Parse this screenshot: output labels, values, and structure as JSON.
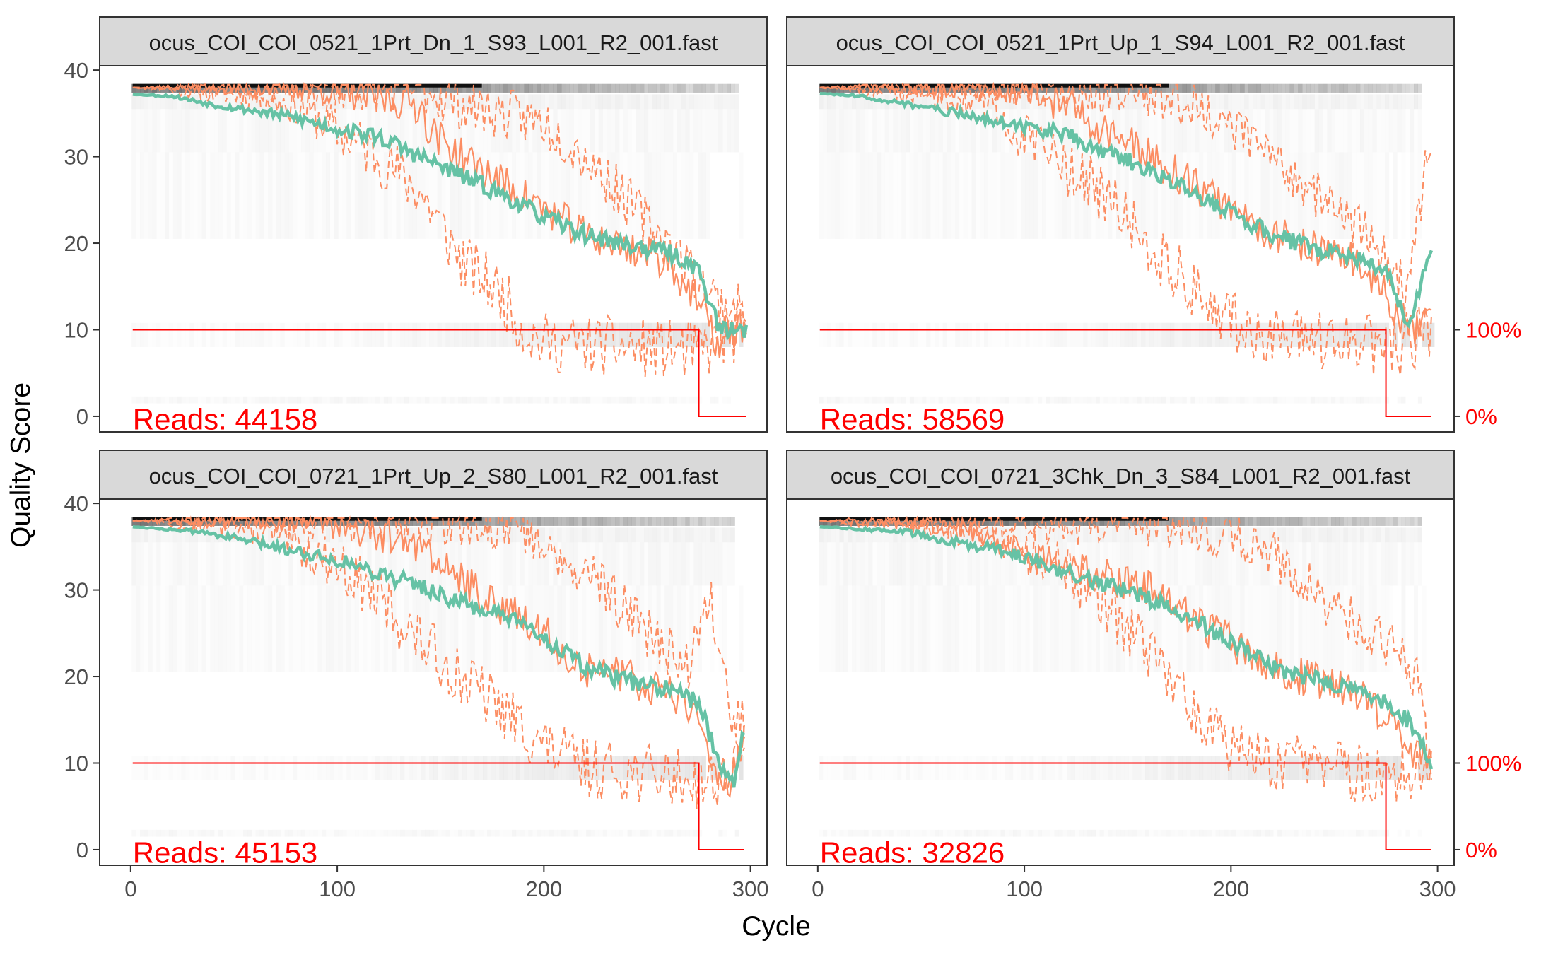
{
  "chart_data": {
    "type": "line",
    "xlabel": "Cycle",
    "ylabel": "Quality Score",
    "xlim": [
      -15,
      308
    ],
    "ylim": [
      -1.8,
      40.5
    ],
    "x_ticks": [
      0,
      100,
      200,
      300
    ],
    "y_ticks": [
      0,
      10,
      20,
      30,
      40
    ],
    "secondary_axis_labels": {
      "top": "100%",
      "bottom": "0%"
    },
    "reads_prefix": "Reads:",
    "colors": {
      "mean": "#66c2a5",
      "quantile": "#fc8d62",
      "reads": "#ff0000",
      "strip_bg": "#d9d9d9"
    },
    "panels": [
      {
        "strip_title": "ocus_COI_COI_0521_1Prt_Dn_1_S93_L001_R2_001.fast",
        "reads": "44158",
        "last_cycle": 298,
        "trunc_cycle": 275,
        "mean": [
          [
            1,
            37.2
          ],
          [
            20,
            37
          ],
          [
            40,
            36
          ],
          [
            60,
            35.3
          ],
          [
            80,
            34.5
          ],
          [
            100,
            33.2
          ],
          [
            120,
            32.3
          ],
          [
            140,
            30
          ],
          [
            160,
            27.8
          ],
          [
            180,
            25.6
          ],
          [
            200,
            23
          ],
          [
            220,
            21
          ],
          [
            240,
            19.8
          ],
          [
            260,
            19
          ],
          [
            275,
            17
          ],
          [
            285,
            10
          ],
          [
            298,
            10
          ]
        ],
        "median": [
          [
            1,
            38
          ],
          [
            80,
            38
          ],
          [
            100,
            37.5
          ],
          [
            140,
            36
          ],
          [
            145,
            33
          ],
          [
            160,
            30
          ],
          [
            180,
            27
          ],
          [
            200,
            24
          ],
          [
            220,
            21
          ],
          [
            240,
            19.5
          ],
          [
            260,
            18
          ],
          [
            275,
            13
          ],
          [
            285,
            8
          ],
          [
            298,
            11
          ]
        ],
        "q25": [
          [
            1,
            38
          ],
          [
            60,
            37
          ],
          [
            80,
            36
          ],
          [
            100,
            33
          ],
          [
            120,
            30
          ],
          [
            140,
            26
          ],
          [
            150,
            22
          ],
          [
            160,
            18
          ],
          [
            180,
            14
          ],
          [
            190,
            10
          ],
          [
            200,
            8.5
          ],
          [
            240,
            8
          ],
          [
            275,
            7.5
          ],
          [
            298,
            10
          ]
        ],
        "q75": [
          [
            1,
            38
          ],
          [
            140,
            38
          ],
          [
            150,
            37
          ],
          [
            160,
            36
          ],
          [
            200,
            34
          ],
          [
            220,
            30
          ],
          [
            240,
            25
          ],
          [
            260,
            20
          ],
          [
            275,
            16
          ],
          [
            285,
            13
          ],
          [
            298,
            12
          ]
        ]
      },
      {
        "strip_title": "ocus_COI_COI_0521_1Prt_Up_1_S94_L001_R2_001.fast",
        "reads": "58569",
        "last_cycle": 297,
        "trunc_cycle": 275,
        "mean": [
          [
            1,
            37.3
          ],
          [
            20,
            37
          ],
          [
            40,
            36.2
          ],
          [
            60,
            35.3
          ],
          [
            80,
            34.5
          ],
          [
            100,
            33.5
          ],
          [
            120,
            32.5
          ],
          [
            140,
            30.5
          ],
          [
            160,
            28.5
          ],
          [
            180,
            26
          ],
          [
            200,
            23.5
          ],
          [
            220,
            21
          ],
          [
            240,
            19.5
          ],
          [
            260,
            18.2
          ],
          [
            275,
            17
          ],
          [
            285,
            10.5
          ],
          [
            292,
            15
          ],
          [
            297,
            20
          ]
        ],
        "median": [
          [
            1,
            38
          ],
          [
            80,
            38
          ],
          [
            100,
            37.5
          ],
          [
            120,
            36
          ],
          [
            140,
            33
          ],
          [
            160,
            30
          ],
          [
            180,
            27
          ],
          [
            200,
            24
          ],
          [
            220,
            21
          ],
          [
            240,
            19.5
          ],
          [
            260,
            18
          ],
          [
            275,
            14
          ],
          [
            285,
            9
          ],
          [
            297,
            12
          ]
        ],
        "q25": [
          [
            1,
            38
          ],
          [
            60,
            37
          ],
          [
            80,
            36
          ],
          [
            100,
            32
          ],
          [
            120,
            29
          ],
          [
            140,
            25
          ],
          [
            160,
            20
          ],
          [
            180,
            15
          ],
          [
            200,
            11
          ],
          [
            220,
            9
          ],
          [
            260,
            8.5
          ],
          [
            280,
            8
          ],
          [
            297,
            10
          ]
        ],
        "q75": [
          [
            1,
            38
          ],
          [
            150,
            38
          ],
          [
            170,
            37
          ],
          [
            190,
            35
          ],
          [
            210,
            32
          ],
          [
            230,
            28
          ],
          [
            250,
            24
          ],
          [
            270,
            20
          ],
          [
            285,
            14
          ],
          [
            297,
            33
          ]
        ]
      },
      {
        "strip_title": "ocus_COI_COI_0721_1Prt_Up_2_S80_L001_R2_001.fast",
        "reads": "45153",
        "last_cycle": 297,
        "trunc_cycle": 275,
        "mean": [
          [
            1,
            37.3
          ],
          [
            20,
            37
          ],
          [
            40,
            36.5
          ],
          [
            60,
            35.5
          ],
          [
            80,
            34.5
          ],
          [
            100,
            33.5
          ],
          [
            120,
            32
          ],
          [
            140,
            30.5
          ],
          [
            160,
            28.5
          ],
          [
            180,
            27
          ],
          [
            200,
            24.5
          ],
          [
            220,
            21
          ],
          [
            240,
            19.5
          ],
          [
            260,
            18.5
          ],
          [
            275,
            17
          ],
          [
            285,
            10
          ],
          [
            292,
            8
          ],
          [
            297,
            14
          ]
        ],
        "median": [
          [
            1,
            38
          ],
          [
            90,
            38
          ],
          [
            110,
            37
          ],
          [
            140,
            35
          ],
          [
            160,
            31
          ],
          [
            180,
            28
          ],
          [
            200,
            25
          ],
          [
            220,
            21
          ],
          [
            240,
            20
          ],
          [
            260,
            18
          ],
          [
            275,
            15
          ],
          [
            285,
            8
          ],
          [
            290,
            7
          ],
          [
            297,
            14
          ]
        ],
        "q25": [
          [
            1,
            38
          ],
          [
            60,
            37
          ],
          [
            80,
            35
          ],
          [
            100,
            33
          ],
          [
            120,
            29
          ],
          [
            140,
            24
          ],
          [
            160,
            20
          ],
          [
            180,
            16
          ],
          [
            200,
            12
          ],
          [
            220,
            9.5
          ],
          [
            260,
            8.5
          ],
          [
            280,
            8
          ],
          [
            297,
            10
          ]
        ],
        "q75": [
          [
            1,
            38
          ],
          [
            170,
            38
          ],
          [
            190,
            37
          ],
          [
            210,
            34
          ],
          [
            230,
            30
          ],
          [
            250,
            25
          ],
          [
            270,
            21
          ],
          [
            280,
            30
          ],
          [
            290,
            16
          ],
          [
            297,
            15
          ]
        ]
      },
      {
        "strip_title": "ocus_COI_COI_0721_3Chk_Dn_3_S84_L001_R2_001.fast",
        "reads": "32826",
        "last_cycle": 297,
        "trunc_cycle": 275,
        "mean": [
          [
            1,
            37.3
          ],
          [
            40,
            36.8
          ],
          [
            60,
            35.8
          ],
          [
            80,
            35
          ],
          [
            100,
            34
          ],
          [
            120,
            32
          ],
          [
            140,
            30.5
          ],
          [
            160,
            29
          ],
          [
            180,
            27
          ],
          [
            200,
            24
          ],
          [
            220,
            21
          ],
          [
            240,
            19.8
          ],
          [
            260,
            18.5
          ],
          [
            275,
            17
          ],
          [
            285,
            15
          ],
          [
            297,
            10
          ]
        ],
        "median": [
          [
            1,
            38
          ],
          [
            60,
            37.5
          ],
          [
            80,
            36.5
          ],
          [
            100,
            34
          ],
          [
            120,
            32.5
          ],
          [
            140,
            31.5
          ],
          [
            160,
            30
          ],
          [
            180,
            27
          ],
          [
            200,
            24
          ],
          [
            220,
            21
          ],
          [
            240,
            19.5
          ],
          [
            260,
            18
          ],
          [
            275,
            15
          ],
          [
            285,
            12
          ],
          [
            297,
            10
          ]
        ],
        "q25": [
          [
            1,
            38
          ],
          [
            80,
            37
          ],
          [
            100,
            35
          ],
          [
            120,
            32
          ],
          [
            140,
            28
          ],
          [
            160,
            23
          ],
          [
            180,
            17
          ],
          [
            200,
            12
          ],
          [
            220,
            10
          ],
          [
            260,
            9
          ],
          [
            280,
            8
          ],
          [
            297,
            9.5
          ]
        ],
        "q75": [
          [
            1,
            38
          ],
          [
            150,
            38
          ],
          [
            180,
            37.5
          ],
          [
            200,
            36
          ],
          [
            220,
            34
          ],
          [
            240,
            30
          ],
          [
            260,
            26
          ],
          [
            280,
            23
          ],
          [
            290,
            20
          ],
          [
            297,
            10
          ]
        ]
      }
    ]
  }
}
